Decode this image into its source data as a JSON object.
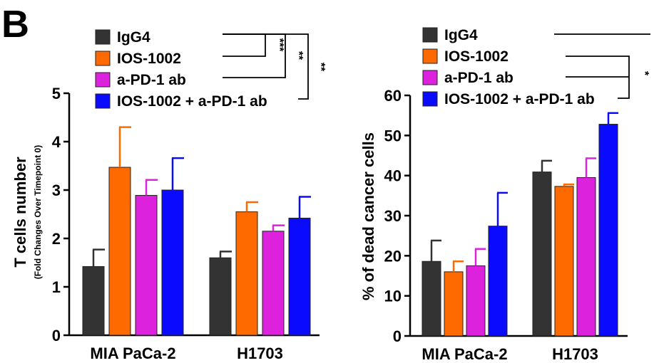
{
  "panel_label": "B",
  "colors": {
    "IgG4": "#333333",
    "IOS-1002": "#ff6a00",
    "a-PD-1 ab": "#dd22dd",
    "IOS-1002 + a-PD-1 ab": "#0a0aff"
  },
  "chart_data": [
    {
      "type": "bar",
      "categories": [
        "MIA PaCa-2",
        "H1703"
      ],
      "ylabel": "T cells number",
      "ylabel_sub": "(Fold Changes Over Timepoint 0)",
      "ylim": [
        0,
        5
      ],
      "yticks": [
        0,
        1,
        2,
        3,
        4,
        5
      ],
      "legend": [
        "IgG4",
        "IOS-1002",
        "a-PD-1 ab",
        "IOS-1002 + a-PD-1 ab"
      ],
      "legend_position": "top",
      "grid": false,
      "series": [
        {
          "name": "IgG4",
          "values": [
            1.42,
            1.6
          ],
          "errors": [
            0.35,
            0.13
          ]
        },
        {
          "name": "IOS-1002",
          "values": [
            3.47,
            2.55
          ],
          "errors": [
            0.83,
            0.2
          ]
        },
        {
          "name": "a-PD-1 ab",
          "values": [
            2.89,
            2.15
          ],
          "errors": [
            0.32,
            0.12
          ]
        },
        {
          "name": "IOS-1002 + a-PD-1 ab",
          "values": [
            3.0,
            2.42
          ],
          "errors": [
            0.66,
            0.44
          ]
        }
      ],
      "significance": [
        "***",
        "**",
        "**"
      ]
    },
    {
      "type": "bar",
      "categories": [
        "MIA PaCa-2",
        "H1703"
      ],
      "ylabel": "% of dead cancer cells",
      "ylim": [
        0,
        60
      ],
      "yticks": [
        0,
        10,
        20,
        30,
        40,
        50,
        60
      ],
      "legend": [
        "IgG4",
        "IOS-1002",
        "a-PD-1 ab",
        "IOS-1002 + a-PD-1 ab"
      ],
      "legend_position": "top",
      "grid": false,
      "series": [
        {
          "name": "IgG4",
          "values": [
            18.6,
            40.9
          ],
          "errors": [
            5.2,
            2.8
          ]
        },
        {
          "name": "IOS-1002",
          "values": [
            16.0,
            37.3
          ],
          "errors": [
            2.6,
            0.5
          ]
        },
        {
          "name": "a-PD-1 ab",
          "values": [
            17.5,
            39.5
          ],
          "errors": [
            4.2,
            4.8
          ]
        },
        {
          "name": "IOS-1002 + a-PD-1 ab",
          "values": [
            27.4,
            52.8
          ],
          "errors": [
            8.3,
            2.8
          ]
        }
      ],
      "significance": [
        "*"
      ]
    }
  ]
}
